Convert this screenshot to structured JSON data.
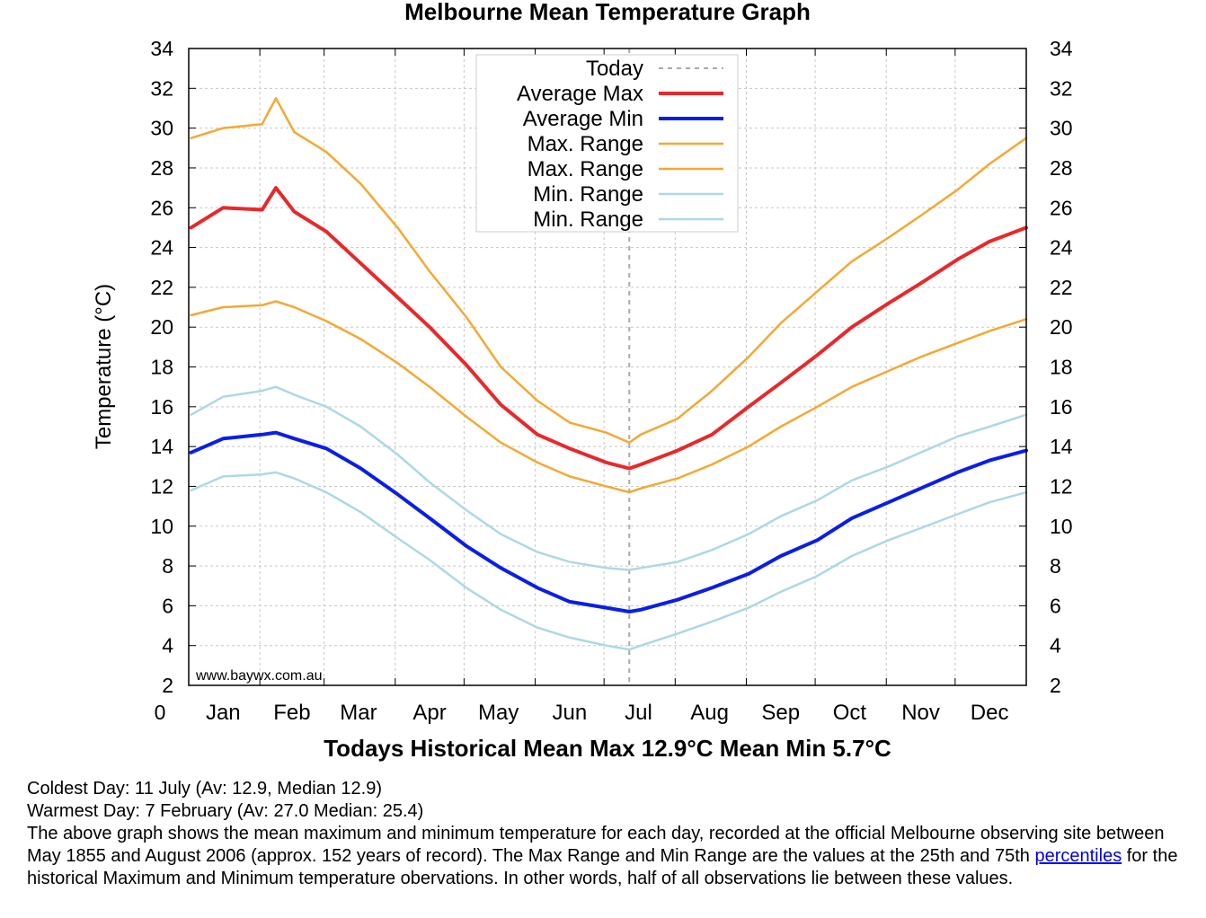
{
  "chart_data": {
    "type": "line",
    "title": "Melbourne Mean Temperature Graph",
    "xlabel": "Todays Historical Mean Max 12.9°C Mean Min 5.7°C",
    "ylabel": "Temperature (°C)",
    "ylim": [
      2,
      34
    ],
    "xlim": [
      0,
      365
    ],
    "y_ticks": [
      "2",
      "4",
      "6",
      "8",
      "10",
      "12",
      "14",
      "16",
      "18",
      "20",
      "22",
      "24",
      "26",
      "28",
      "30",
      "32",
      "34"
    ],
    "x_zero_label": "0",
    "month_labels": [
      "Jan",
      "Feb",
      "Mar",
      "Apr",
      "May",
      "Jun",
      "Jul",
      "Aug",
      "Sep",
      "Oct",
      "Nov",
      "Dec"
    ],
    "month_label_days": [
      15,
      45,
      74,
      105,
      135,
      166,
      196,
      227,
      258,
      288,
      319,
      349
    ],
    "month_grid_days": [
      31,
      59,
      90,
      120,
      151,
      181,
      212,
      243,
      273,
      304,
      334
    ],
    "grid": true,
    "legend_position": "top-center",
    "watermark": "www.baywx.com.au",
    "today_day": 192,
    "days": [
      1,
      15,
      32,
      38,
      46,
      60,
      75,
      91,
      105,
      121,
      136,
      152,
      166,
      182,
      192,
      197,
      213,
      228,
      244,
      258,
      274,
      289,
      305,
      319,
      335,
      349,
      365
    ],
    "series": [
      {
        "name": "Today",
        "color": "#aaaaaa",
        "style": "dashed"
      },
      {
        "name": "Average Max",
        "color": "#e8282a",
        "values": [
          25.0,
          26.0,
          25.9,
          27.0,
          25.8,
          24.8,
          23.2,
          21.5,
          20.0,
          18.1,
          16.1,
          14.6,
          13.9,
          13.2,
          12.9,
          13.1,
          13.8,
          14.6,
          16.0,
          17.2,
          18.6,
          20.0,
          21.2,
          22.2,
          23.4,
          24.3,
          25.0
        ]
      },
      {
        "name": "Average Min",
        "color": "#0a1ee8",
        "values": [
          13.7,
          14.4,
          14.6,
          14.7,
          14.4,
          13.9,
          12.9,
          11.6,
          10.4,
          9.0,
          7.9,
          6.9,
          6.2,
          5.9,
          5.7,
          5.8,
          6.3,
          6.9,
          7.6,
          8.5,
          9.3,
          10.4,
          11.2,
          11.9,
          12.7,
          13.3,
          13.8
        ]
      },
      {
        "name": "Max. Range",
        "color": "#f5a833",
        "values": [
          29.5,
          30.0,
          30.2,
          31.5,
          29.8,
          28.8,
          27.2,
          25.0,
          22.8,
          20.5,
          18.0,
          16.3,
          15.2,
          14.7,
          14.2,
          14.6,
          15.4,
          16.8,
          18.5,
          20.2,
          21.8,
          23.3,
          24.5,
          25.6,
          26.9,
          28.2,
          29.5
        ]
      },
      {
        "name": "Max. Range",
        "color": "#f5a833",
        "values": [
          20.6,
          21.0,
          21.1,
          21.3,
          21.0,
          20.3,
          19.4,
          18.2,
          17.0,
          15.5,
          14.2,
          13.2,
          12.5,
          12.0,
          11.7,
          11.9,
          12.4,
          13.1,
          14.0,
          15.0,
          16.0,
          17.0,
          17.8,
          18.5,
          19.2,
          19.8,
          20.4
        ]
      },
      {
        "name": "Min. Range",
        "color": "#add8e6",
        "values": [
          15.6,
          16.5,
          16.8,
          17.0,
          16.6,
          16.0,
          15.0,
          13.6,
          12.2,
          10.8,
          9.6,
          8.7,
          8.2,
          7.9,
          7.8,
          7.9,
          8.2,
          8.8,
          9.6,
          10.5,
          11.3,
          12.3,
          13.0,
          13.7,
          14.5,
          15.0,
          15.6
        ]
      },
      {
        "name": "Min. Range",
        "color": "#add8e6",
        "values": [
          11.8,
          12.5,
          12.6,
          12.7,
          12.4,
          11.7,
          10.7,
          9.4,
          8.3,
          6.9,
          5.8,
          4.9,
          4.4,
          4.0,
          3.8,
          4.0,
          4.6,
          5.2,
          5.9,
          6.7,
          7.5,
          8.5,
          9.3,
          9.9,
          10.6,
          11.2,
          11.7
        ]
      }
    ]
  },
  "caption": {
    "coldest": "Coldest Day: 11 July (Av: 12.9, Median 12.9)",
    "warmest": "Warmest Day: 7 February (Av: 27.0 Median: 25.4)",
    "desc_before_link": "The above graph shows the mean maximum and minimum temperature for each day, recorded at the official Melbourne observing site between May 1855 and August 2006 (approx. 152 years of record). The Max Range and Min Range are the values at the 25th and 75th ",
    "link_text": "percentiles",
    "desc_after_link": " for the historical Maximum and Minimum temperature obervations. In other words, half of all observations lie between these values."
  }
}
